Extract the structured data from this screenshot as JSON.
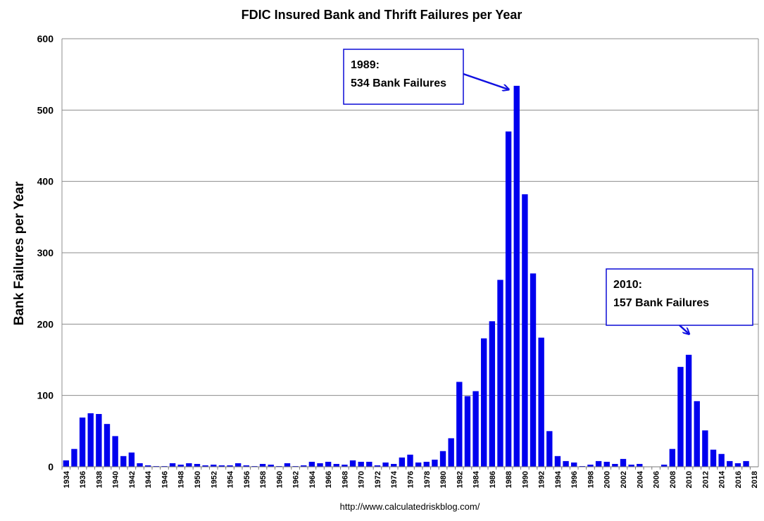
{
  "chart_data": {
    "type": "bar",
    "title": "FDIC Insured Bank and Thrift Failures per Year",
    "ylabel": "Bank Failures per Year",
    "xlabel": "",
    "source": "http://www.calculatedriskblog.com/",
    "ylim": [
      0,
      600
    ],
    "yticks": [
      0,
      100,
      200,
      300,
      400,
      500,
      600
    ],
    "grid": true,
    "legend": "none",
    "bar_color": "#0000ee",
    "categories": [
      "1934",
      "1935",
      "1936",
      "1937",
      "1938",
      "1939",
      "1940",
      "1941",
      "1942",
      "1943",
      "1944",
      "1945",
      "1946",
      "1947",
      "1948",
      "1949",
      "1950",
      "1951",
      "1952",
      "1953",
      "1954",
      "1955",
      "1956",
      "1957",
      "1958",
      "1959",
      "1960",
      "1961",
      "1962",
      "1963",
      "1964",
      "1965",
      "1966",
      "1967",
      "1968",
      "1969",
      "1970",
      "1971",
      "1972",
      "1973",
      "1974",
      "1975",
      "1976",
      "1977",
      "1978",
      "1979",
      "1980",
      "1981",
      "1982",
      "1983",
      "1984",
      "1985",
      "1986",
      "1987",
      "1988",
      "1989",
      "1990",
      "1991",
      "1992",
      "1993",
      "1994",
      "1995",
      "1996",
      "1997",
      "1998",
      "1999",
      "2000",
      "2001",
      "2002",
      "2003",
      "2004",
      "2005",
      "2006",
      "2007",
      "2008",
      "2009",
      "2010",
      "2011",
      "2012",
      "2013",
      "2014",
      "2015",
      "2016",
      "2017",
      "2018"
    ],
    "xtick_labels": [
      "1934",
      "1936",
      "1938",
      "1940",
      "1942",
      "1944",
      "1946",
      "1948",
      "1950",
      "1952",
      "1954",
      "1956",
      "1958",
      "1960",
      "1962",
      "1964",
      "1966",
      "1968",
      "1970",
      "1972",
      "1974",
      "1976",
      "1978",
      "1980",
      "1982",
      "1984",
      "1986",
      "1988",
      "1990",
      "1992",
      "1994",
      "1996",
      "1998",
      "2000",
      "2002",
      "2004",
      "2006",
      "2008",
      "2010",
      "2012",
      "2014",
      "2016",
      "2018"
    ],
    "values": [
      9,
      25,
      69,
      75,
      74,
      60,
      43,
      15,
      20,
      5,
      2,
      1,
      1,
      5,
      3,
      5,
      4,
      2,
      3,
      2,
      2,
      5,
      2,
      1,
      4,
      3,
      1,
      5,
      1,
      2,
      7,
      5,
      7,
      4,
      3,
      9,
      7,
      7,
      2,
      6,
      4,
      13,
      17,
      6,
      7,
      10,
      22,
      40,
      119,
      99,
      106,
      180,
      204,
      262,
      470,
      534,
      382,
      271,
      181,
      50,
      15,
      8,
      6,
      1,
      3,
      8,
      7,
      4,
      11,
      3,
      4,
      0,
      0,
      3,
      25,
      140,
      157,
      92,
      51,
      24,
      18,
      8,
      5,
      8,
      0
    ],
    "annotations": [
      {
        "line1": "1989:",
        "line2": "534 Bank Failures",
        "target_year": "1989"
      },
      {
        "line1": "2010:",
        "line2": "157 Bank Failures",
        "target_year": "2010"
      }
    ]
  }
}
